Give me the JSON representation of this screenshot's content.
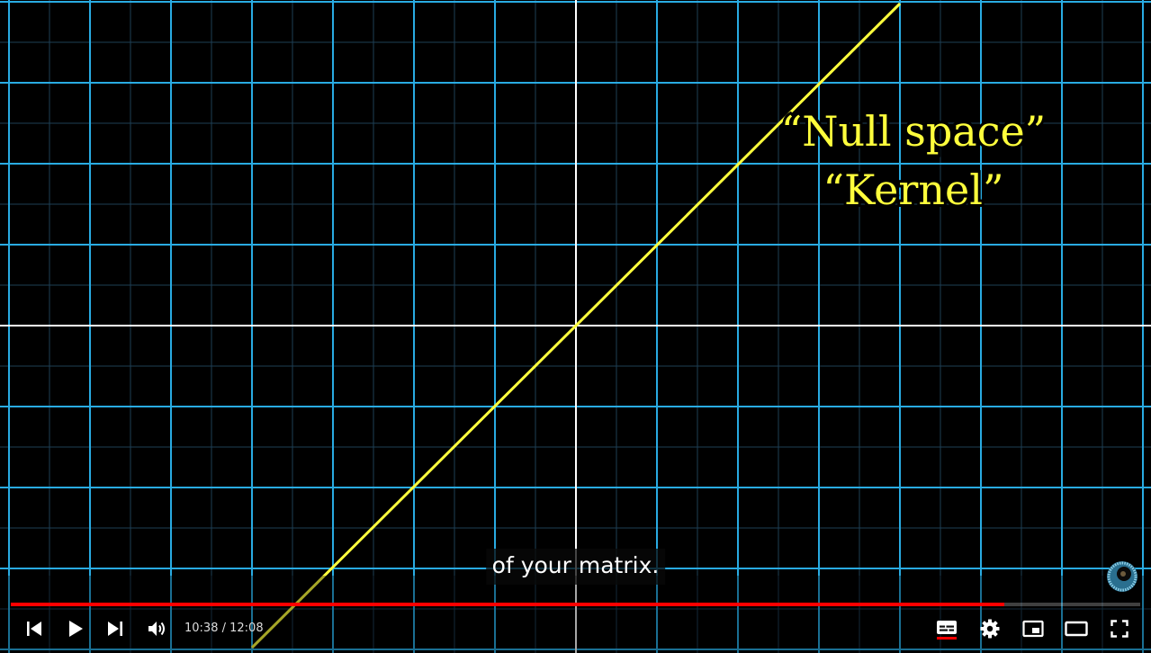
{
  "video": {
    "subtitle": "of your matrix.",
    "annotation_line1": "“Null space”",
    "annotation_line2": "“Kernel”",
    "progress_fraction": 0.88,
    "current_time": "10:38",
    "separator": " / ",
    "duration": "12:08"
  },
  "colors": {
    "grid_major": "#29abe2",
    "grid_minor": "#1e3f55",
    "axis": "#ffffff",
    "null_space_line": "#ffff3c",
    "annotation_text": "#ffff3c",
    "progress_played": "#ff0000"
  },
  "controls": {
    "icons": [
      "previous-icon",
      "play-icon",
      "next-icon",
      "volume-icon",
      "subtitles-icon",
      "settings-icon",
      "miniplayer-icon",
      "theater-mode-icon",
      "fullscreen-icon"
    ]
  }
}
